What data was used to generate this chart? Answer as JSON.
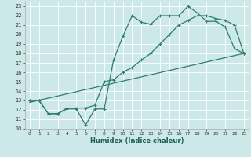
{
  "xlabel": "Humidex (Indice chaleur)",
  "bg_color": "#cce8e8",
  "grid_color": "#ffffff",
  "line_color": "#2e7d6e",
  "xlim": [
    -0.5,
    23.5
  ],
  "ylim": [
    10,
    23.5
  ],
  "xticks": [
    0,
    1,
    2,
    3,
    4,
    5,
    6,
    7,
    8,
    9,
    10,
    11,
    12,
    13,
    14,
    15,
    16,
    17,
    18,
    19,
    20,
    21,
    22,
    23
  ],
  "yticks": [
    10,
    11,
    12,
    13,
    14,
    15,
    16,
    17,
    18,
    19,
    20,
    21,
    22,
    23
  ],
  "line1_x": [
    0,
    1,
    2,
    3,
    4,
    5,
    6,
    7,
    8,
    9,
    10,
    11,
    12,
    13,
    14,
    15,
    16,
    17,
    18,
    19,
    20,
    21,
    22,
    23
  ],
  "line1_y": [
    13,
    13,
    11.6,
    11.6,
    12.1,
    12.1,
    10.4,
    12.1,
    12.1,
    17.3,
    19.8,
    22.0,
    21.3,
    21.1,
    22.0,
    22.0,
    22.0,
    23.0,
    22.3,
    21.4,
    21.4,
    20.8,
    18.5,
    18.0
  ],
  "line2_x": [
    0,
    1,
    2,
    3,
    4,
    5,
    6,
    7,
    8,
    9,
    10,
    11,
    12,
    13,
    14,
    15,
    16,
    17,
    18,
    19,
    20,
    21,
    22,
    23
  ],
  "line2_y": [
    13,
    13,
    11.6,
    11.6,
    12.2,
    12.2,
    12.2,
    12.5,
    15.0,
    15.2,
    16.0,
    16.5,
    17.3,
    18.0,
    19.0,
    20.0,
    21.0,
    21.5,
    22.0,
    22.0,
    21.7,
    21.5,
    21.0,
    18.0
  ],
  "line3_x": [
    0,
    23
  ],
  "line3_y": [
    12.8,
    18.0
  ]
}
